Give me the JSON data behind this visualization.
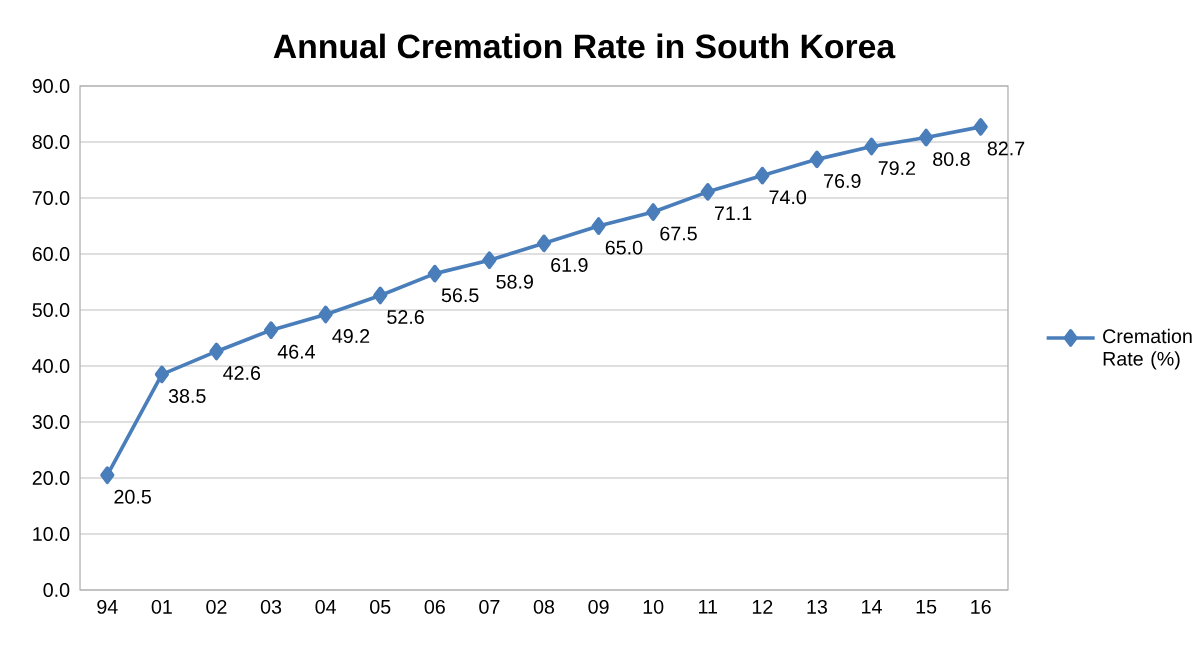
{
  "chart_data": {
    "type": "line",
    "title": "Annual Cremation Rate in South Korea",
    "categories": [
      "94",
      "01",
      "02",
      "03",
      "04",
      "05",
      "06",
      "07",
      "08",
      "09",
      "10",
      "11",
      "12",
      "13",
      "14",
      "15",
      "16"
    ],
    "series": [
      {
        "name": "Cremation Rate (%)",
        "color": "#4a7ebb",
        "values": [
          20.5,
          38.5,
          42.6,
          46.4,
          49.2,
          52.6,
          56.5,
          58.9,
          61.9,
          65.0,
          67.5,
          71.1,
          74.0,
          76.9,
          79.2,
          80.8,
          82.7
        ],
        "value_labels": [
          "20.5",
          "38.5",
          "42.6",
          "46.4",
          "49.2",
          "52.6",
          "56.5",
          "58.9",
          "61.9",
          "65.0",
          "67.5",
          "71.1",
          "74.0",
          "76.9",
          "79.2",
          "80.8",
          "82.7"
        ]
      }
    ],
    "ylim": [
      0,
      90
    ],
    "yticks": [
      {
        "value": 0,
        "label": "0.0"
      },
      {
        "value": 10,
        "label": "10.0"
      },
      {
        "value": 20,
        "label": "20.0"
      },
      {
        "value": 30,
        "label": "30.0"
      },
      {
        "value": 40,
        "label": "40.0"
      },
      {
        "value": 50,
        "label": "50.0"
      },
      {
        "value": 60,
        "label": "60.0"
      },
      {
        "value": 70,
        "label": "70.0"
      },
      {
        "value": 80,
        "label": "80.0"
      },
      {
        "value": 90,
        "label": "90.0"
      }
    ],
    "grid": "y",
    "legend": "right",
    "marker": "diamond",
    "line_style": "solid"
  }
}
